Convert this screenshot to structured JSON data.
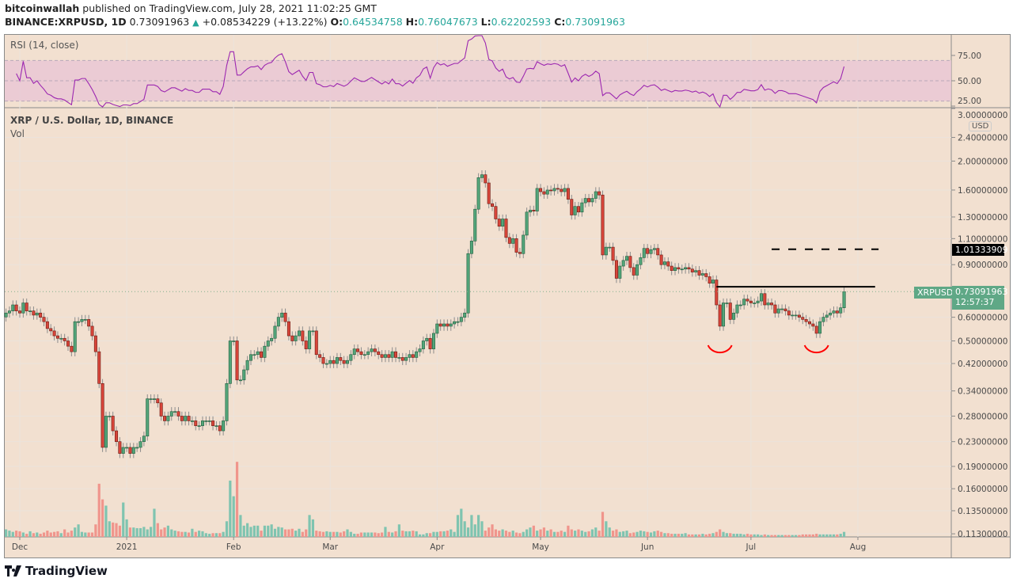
{
  "header": {
    "author": "bitcoinwallah",
    "published": "published on TradingView.com, July 28, 2021 11:02:25 GMT",
    "symbol": "BINANCE:XRPUSD, 1D",
    "last": "0.73091963",
    "change": "+0.08534229 (+13.22%)",
    "o_label": "O:",
    "o": "0.64534758",
    "h_label": "H:",
    "h": "0.76047673",
    "l_label": "L:",
    "l": "0.62202593",
    "c_label": "C:",
    "c": "0.73091963"
  },
  "rsi_pane": {
    "title": "RSI (14, close)",
    "ticks": [
      "75.00",
      "50.00",
      "25.00"
    ],
    "band": [
      30,
      70
    ],
    "line_color": "#9c27b0"
  },
  "main_pane": {
    "title": "XRP / U.S. Dollar, 1D, BINANCE",
    "vol_label": "Vol",
    "currency": "USD"
  },
  "price_tag": {
    "symbol": "XRPUSD",
    "price": "0.73091963",
    "countdown": "12:57:37",
    "color": "#5fa886"
  },
  "level_tag": {
    "price": "1.01333909"
  },
  "footer": {
    "brand": "TradingView"
  },
  "chart_data": {
    "type": "candlestick",
    "scale": "log",
    "x_start": "2020-11-27",
    "y_ticks": [
      3.0,
      2.4,
      2.0,
      1.6,
      1.3,
      1.1,
      0.9,
      0.6,
      0.5,
      0.42,
      0.34,
      0.28,
      0.23,
      0.19,
      0.16,
      0.135,
      0.113
    ],
    "y_tick_labels": [
      "3.00000000",
      "2.40000000",
      "2.00000000",
      "1.60000000",
      "1.30000000",
      "1.10000000",
      "0.90000000",
      "0.60000000",
      "0.50000000",
      "0.42000000",
      "0.34000000",
      "0.28000000",
      "0.23000000",
      "0.19000000",
      "0.16000000",
      "0.13500000",
      "0.11300000"
    ],
    "x_ticks": [
      {
        "label": "Dec",
        "date": "2020-12-01"
      },
      {
        "label": "2021",
        "date": "2021-01-01"
      },
      {
        "label": "Feb",
        "date": "2021-02-01"
      },
      {
        "label": "Mar",
        "date": "2021-03-01"
      },
      {
        "label": "Apr",
        "date": "2021-04-01"
      },
      {
        "label": "May",
        "date": "2021-05-01"
      },
      {
        "label": "Jun",
        "date": "2021-06-01"
      },
      {
        "label": "Jul",
        "date": "2021-07-01"
      },
      {
        "label": "Aug",
        "date": "2021-08-01"
      }
    ],
    "up_color": "#53a57a",
    "down_color": "#d8453a",
    "vol_up_color": "#7fc4b0",
    "vol_down_color": "#f0958c",
    "close": [
      0.62,
      0.63,
      0.66,
      0.63,
      0.62,
      0.67,
      0.63,
      0.63,
      0.61,
      0.62,
      0.6,
      0.58,
      0.55,
      0.54,
      0.52,
      0.51,
      0.51,
      0.5,
      0.48,
      0.46,
      0.58,
      0.58,
      0.59,
      0.59,
      0.56,
      0.52,
      0.46,
      0.36,
      0.22,
      0.28,
      0.28,
      0.25,
      0.23,
      0.21,
      0.22,
      0.22,
      0.21,
      0.22,
      0.22,
      0.23,
      0.24,
      0.32,
      0.32,
      0.32,
      0.31,
      0.28,
      0.27,
      0.28,
      0.29,
      0.29,
      0.28,
      0.27,
      0.28,
      0.27,
      0.27,
      0.26,
      0.26,
      0.27,
      0.27,
      0.27,
      0.26,
      0.26,
      0.25,
      0.27,
      0.36,
      0.5,
      0.5,
      0.37,
      0.37,
      0.4,
      0.43,
      0.45,
      0.45,
      0.46,
      0.44,
      0.48,
      0.5,
      0.51,
      0.56,
      0.6,
      0.62,
      0.58,
      0.52,
      0.5,
      0.52,
      0.54,
      0.5,
      0.47,
      0.54,
      0.54,
      0.45,
      0.44,
      0.42,
      0.42,
      0.43,
      0.42,
      0.44,
      0.43,
      0.42,
      0.43,
      0.45,
      0.47,
      0.46,
      0.45,
      0.45,
      0.46,
      0.47,
      0.46,
      0.45,
      0.44,
      0.45,
      0.44,
      0.46,
      0.44,
      0.44,
      0.43,
      0.44,
      0.45,
      0.44,
      0.46,
      0.47,
      0.5,
      0.51,
      0.47,
      0.53,
      0.57,
      0.56,
      0.57,
      0.56,
      0.57,
      0.58,
      0.58,
      0.6,
      0.62,
      0.98,
      1.08,
      1.38,
      1.76,
      1.8,
      1.69,
      1.44,
      1.41,
      1.28,
      1.21,
      1.28,
      1.11,
      1.06,
      1.1,
      0.99,
      0.98,
      1.13,
      1.35,
      1.37,
      1.36,
      1.62,
      1.58,
      1.55,
      1.6,
      1.59,
      1.62,
      1.61,
      1.58,
      1.62,
      1.49,
      1.32,
      1.41,
      1.35,
      1.45,
      1.5,
      1.46,
      1.5,
      1.58,
      1.54,
      0.97,
      1.03,
      1.03,
      0.93,
      0.81,
      0.89,
      0.93,
      0.96,
      0.88,
      0.83,
      0.9,
      0.95,
      1.02,
      0.98,
      1.01,
      1.02,
      0.97,
      0.9,
      0.92,
      0.89,
      0.86,
      0.88,
      0.87,
      0.87,
      0.88,
      0.87,
      0.85,
      0.86,
      0.83,
      0.84,
      0.82,
      0.78,
      0.8,
      0.66,
      0.56,
      0.67,
      0.67,
      0.59,
      0.62,
      0.66,
      0.66,
      0.69,
      0.68,
      0.67,
      0.67,
      0.68,
      0.72,
      0.66,
      0.67,
      0.66,
      0.62,
      0.64,
      0.64,
      0.63,
      0.61,
      0.61,
      0.61,
      0.6,
      0.59,
      0.58,
      0.57,
      0.56,
      0.53,
      0.58,
      0.6,
      0.61,
      0.62,
      0.63,
      0.62,
      0.64534758,
      0.73091963
    ],
    "last_high": 0.76047673,
    "last_low": 0.62202593,
    "volume": [
      12,
      10,
      8,
      10,
      9,
      7,
      5,
      9,
      6,
      7,
      5,
      7,
      10,
      7,
      8,
      9,
      6,
      12,
      7,
      10,
      15,
      20,
      8,
      7,
      7,
      7,
      20,
      85,
      60,
      50,
      25,
      23,
      22,
      18,
      55,
      28,
      15,
      15,
      14,
      14,
      16,
      12,
      16,
      45,
      22,
      12,
      15,
      18,
      12,
      10,
      9,
      8,
      8,
      7,
      13,
      8,
      10,
      9,
      6,
      5,
      6,
      6,
      6,
      8,
      25,
      90,
      65,
      120,
      35,
      18,
      22,
      16,
      18,
      18,
      10,
      18,
      18,
      20,
      13,
      16,
      15,
      12,
      12,
      13,
      10,
      13,
      8,
      12,
      35,
      28,
      10,
      9,
      8,
      9,
      8,
      8,
      8,
      7,
      9,
      12,
      8,
      5,
      5,
      7,
      7,
      7,
      7,
      7,
      6,
      7,
      16,
      8,
      7,
      9,
      20,
      10,
      9,
      9,
      10,
      9,
      4,
      4,
      6,
      6,
      8,
      8,
      9,
      9,
      10,
      12,
      8,
      35,
      45,
      25,
      15,
      35,
      20,
      35,
      25,
      10,
      15,
      20,
      12,
      10,
      12,
      10,
      8,
      10,
      7,
      6,
      8,
      12,
      15,
      18,
      10,
      12,
      15,
      10,
      12,
      8,
      8,
      10,
      8,
      18,
      12,
      10,
      12,
      10,
      8,
      9,
      12,
      15,
      10,
      40,
      25,
      15,
      10,
      12,
      8,
      9,
      10,
      6,
      7,
      8,
      10,
      9,
      8,
      7,
      9,
      10,
      8,
      6,
      6,
      5,
      5,
      5,
      5,
      6,
      4,
      4,
      4,
      4,
      5,
      4,
      5,
      6,
      8,
      12,
      8,
      6,
      6,
      5,
      5,
      5,
      4,
      5,
      4,
      4,
      4,
      3,
      4,
      3,
      3,
      3,
      3,
      3,
      3,
      3,
      3,
      3,
      3,
      4,
      4,
      4,
      4,
      5,
      4,
      4,
      4,
      4,
      4,
      4,
      5,
      8
    ],
    "annotations": {
      "neckline": {
        "price": 0.759,
        "from": "2021-06-21",
        "to": "2021-08-06",
        "color": "#000000"
      },
      "target": {
        "price": 1.01333909,
        "from": "2021-07-07",
        "to": "2021-08-07",
        "style": "dashed"
      },
      "bottoms": [
        {
          "date": "2021-06-22",
          "color": "#ff0000"
        },
        {
          "date": "2021-07-20",
          "color": "#ff0000"
        }
      ]
    }
  }
}
